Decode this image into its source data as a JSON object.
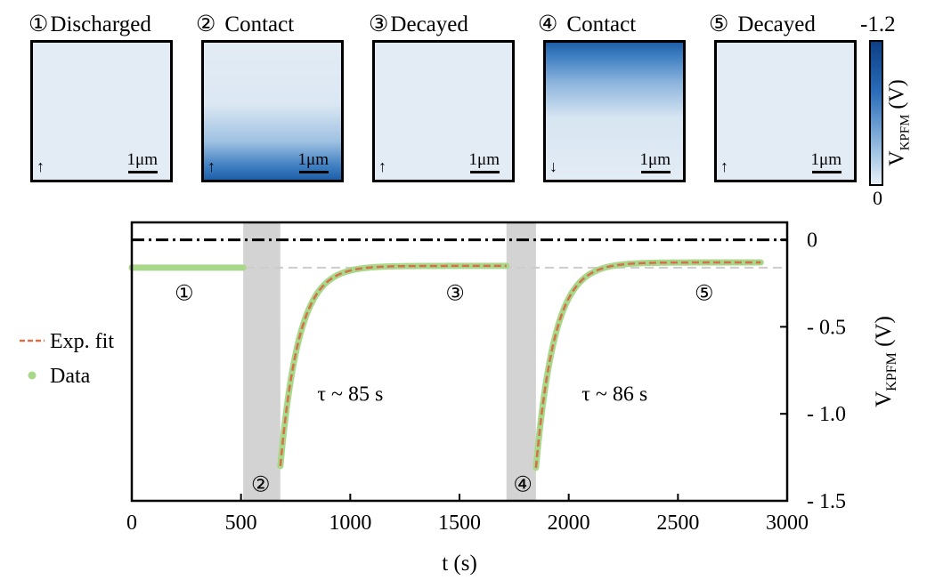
{
  "panels": [
    {
      "number": "①",
      "label": "Discharged",
      "arrow": "↑",
      "scalebar": "1μm",
      "gradient": "none"
    },
    {
      "number": "②",
      "label": "Contact",
      "arrow": "↑",
      "scalebar": "1μm",
      "gradient": "bottom"
    },
    {
      "number": "③",
      "label": "Decayed",
      "arrow": "↑",
      "scalebar": "1μm",
      "gradient": "none"
    },
    {
      "number": "④",
      "label": "Contact",
      "arrow": "↓",
      "scalebar": "1μm",
      "gradient": "top"
    },
    {
      "number": "⑤",
      "label": "Decayed",
      "arrow": "↑",
      "scalebar": "1μm",
      "gradient": "none"
    }
  ],
  "colorbar": {
    "max_label": "-1.2",
    "min_label": "0",
    "title": "V",
    "title_sub": "KPFM",
    "title_unit": " (V)",
    "color_high": "#0d3f86",
    "color_low": "#e8f0f8"
  },
  "chart_data": {
    "type": "line",
    "xlabel": "t (s)",
    "ylabel": "V",
    "ylabel_sub": "KPFM",
    "ylabel_unit": " (V)",
    "xlim": [
      0,
      3000
    ],
    "ylim": [
      -1.5,
      0.0
    ],
    "xticks": [
      0,
      500,
      1000,
      1500,
      2000,
      2500,
      3000
    ],
    "xtick_labels": [
      "0",
      "500",
      "1000",
      "1500",
      "2000",
      "2500",
      "3000"
    ],
    "yticks": [
      0,
      -0.5,
      -1.0,
      -1.5
    ],
    "ytick_labels": [
      "0",
      "- 0.5",
      "- 1.0",
      "- 1.5"
    ],
    "y_axis_side": "right",
    "shaded_regions": [
      [
        510,
        680
      ],
      [
        1715,
        1850
      ]
    ],
    "reference_lines": [
      {
        "y": 0.0,
        "style": "dashdot",
        "color": "#000000"
      },
      {
        "y": -0.16,
        "style": "dashed",
        "color": "#cccccc"
      }
    ],
    "legend": {
      "placement": "left",
      "entries": [
        {
          "label": "Exp. fit",
          "color": "#d6704a",
          "style": "dashed"
        },
        {
          "label": "Data",
          "color": "#a8d88a",
          "style": "marker"
        }
      ]
    },
    "annotations": [
      {
        "text": "①",
        "x": 240,
        "y": -0.3
      },
      {
        "text": "②",
        "x": 590,
        "y": -1.4
      },
      {
        "text": "③",
        "x": 1480,
        "y": -0.3
      },
      {
        "text": "④",
        "x": 1790,
        "y": -1.4
      },
      {
        "text": "⑤",
        "x": 2620,
        "y": -0.3
      },
      {
        "text": "τ ~ 85 s",
        "x": 1000,
        "y": -0.88
      },
      {
        "text": "τ ~ 86 s",
        "x": 2210,
        "y": -0.88
      }
    ],
    "series": [
      {
        "name": "Data",
        "color": "#a8d88a",
        "segments": [
          {
            "kind": "flat",
            "x0": 0,
            "x1": 510,
            "y": -0.16
          },
          {
            "kind": "decay",
            "x0": 680,
            "x1": 1715,
            "y_start": -1.3,
            "y_end": -0.15,
            "tau": 85
          },
          {
            "kind": "decay",
            "x0": 1850,
            "x1": 2880,
            "y_start": -1.31,
            "y_end": -0.13,
            "tau": 86
          }
        ]
      },
      {
        "name": "Exp. fit",
        "color": "#d6704a",
        "segments": [
          {
            "kind": "decay",
            "x0": 680,
            "x1": 1715,
            "y_start": -1.3,
            "y_end": -0.15,
            "tau": 85
          },
          {
            "kind": "decay",
            "x0": 1850,
            "x1": 2880,
            "y_start": -1.31,
            "y_end": -0.13,
            "tau": 86
          }
        ]
      }
    ]
  }
}
